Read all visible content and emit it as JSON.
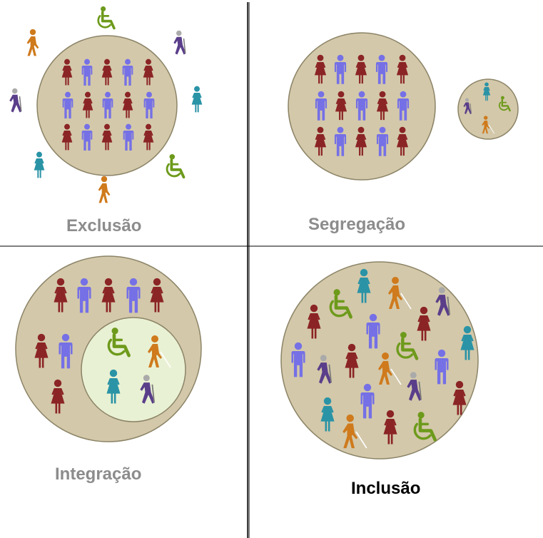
{
  "labels": {
    "exclusion": "Exclusão",
    "segregation": "Segregação",
    "integration": "Integração",
    "inclusion": "Inclusão"
  },
  "colors": {
    "circle_fill": "#d3c8aa",
    "circle_stroke": "#8c8467",
    "inner_circle_fill": "#e9f1d4",
    "woman_majority": "#8b2424",
    "man_majority": "#7570e6",
    "wheelchair_user": "#6d9a1b",
    "blind_person": "#cf7a1c",
    "crutch_person": "#5a3e8a",
    "teal_person": "#2a93a6",
    "divider": "#000000",
    "inactive_label": "#8c8c8c",
    "active_label": "#000000"
  },
  "icons": {
    "woman": "woman-icon",
    "man": "man-icon",
    "wheelchair": "wheelchair-icon",
    "blind": "blind-person-icon",
    "crutch": "crutch-person-icon",
    "teal_woman": "teal-woman-icon"
  },
  "highlighted_panel": "inclusion"
}
